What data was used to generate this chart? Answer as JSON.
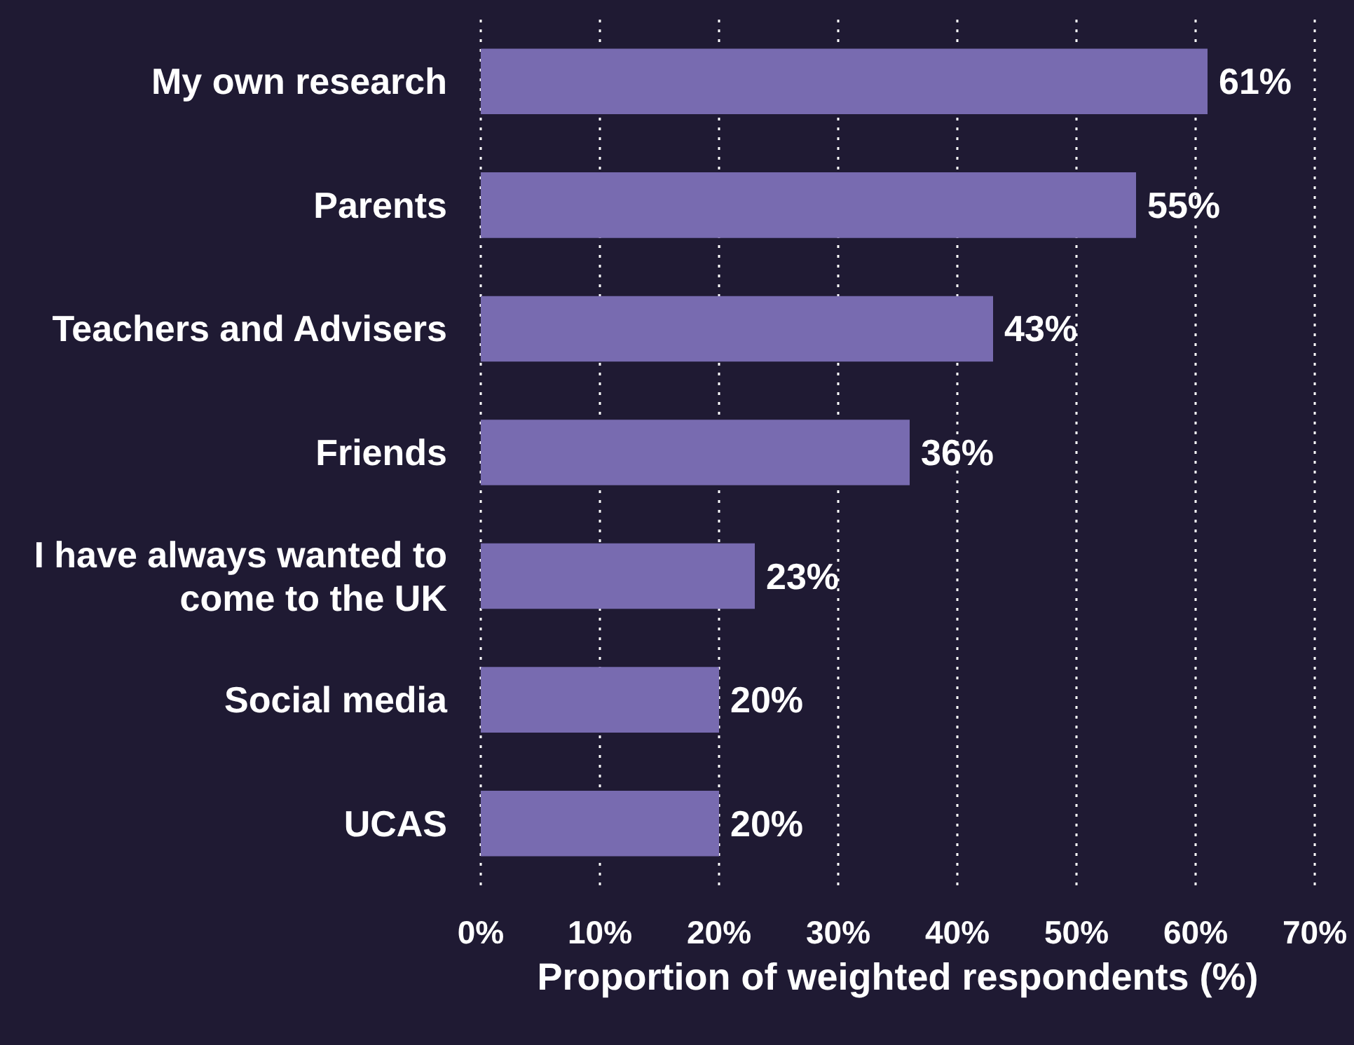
{
  "chart_data": {
    "type": "bar",
    "orientation": "horizontal",
    "xlabel": "Proportion of weighted respondents (%)",
    "categories": [
      "My own research",
      "Parents",
      "Teachers and Advisers",
      "Friends",
      "I have always wanted to come to the UK",
      "Social media",
      "UCAS"
    ],
    "values": [
      61,
      55,
      43,
      36,
      23,
      20,
      20
    ],
    "value_labels": [
      "61%",
      "55%",
      "43%",
      "36%",
      "23%",
      "20%",
      "20%"
    ],
    "color": "#786bb0",
    "xlim": [
      0,
      70
    ],
    "xticks": [
      {
        "value": 0,
        "label": "0%"
      },
      {
        "value": 10,
        "label": "10%"
      },
      {
        "value": 20,
        "label": "20%"
      },
      {
        "value": 30,
        "label": "30%"
      },
      {
        "value": 40,
        "label": "40%"
      },
      {
        "value": 50,
        "label": "50%"
      },
      {
        "value": 60,
        "label": "60%"
      },
      {
        "value": 70,
        "label": "70%"
      }
    ],
    "grid": "x"
  }
}
